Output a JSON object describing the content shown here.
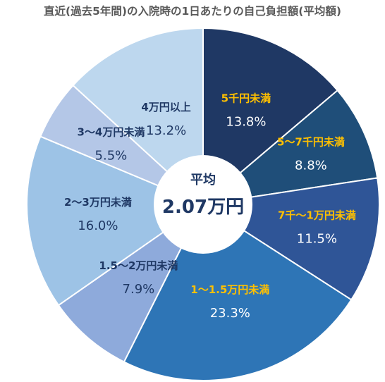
{
  "chart_data": {
    "type": "pie",
    "title": "直近(過去5年間)の入院時の1日あたりの自己負担額(平均額)",
    "center": {
      "label": "平均",
      "value": "2.07万円"
    },
    "slices": [
      {
        "label": "5千円未満",
        "value": 13.8,
        "display": "13.8%",
        "color": "#1f3864",
        "label_color": "#ffc000",
        "pct_color": "#ffffff"
      },
      {
        "label": "5〜7千円未満",
        "value": 8.8,
        "display": "8.8%",
        "color": "#1f4e79",
        "label_color": "#ffc000",
        "pct_color": "#ffffff"
      },
      {
        "label": "7千〜1万円未満",
        "value": 11.5,
        "display": "11.5%",
        "color": "#2f5597",
        "label_color": "#ffc000",
        "pct_color": "#ffffff"
      },
      {
        "label": "1〜1.5万円未満",
        "value": 23.3,
        "display": "23.3%",
        "color": "#2e75b6",
        "label_color": "#ffc000",
        "pct_color": "#ffffff"
      },
      {
        "label": "1.5〜2万円未満",
        "value": 7.9,
        "display": "7.9%",
        "color": "#8eaadb",
        "label_color": "#1f3864",
        "pct_color": "#1f3864"
      },
      {
        "label": "2〜3万円未満",
        "value": 16.0,
        "display": "16.0%",
        "color": "#9dc3e6",
        "label_color": "#1f3864",
        "pct_color": "#1f3864"
      },
      {
        "label": "3〜4万円未満",
        "value": 5.5,
        "display": "5.5%",
        "color": "#b4c7e7",
        "label_color": "#1f3864",
        "pct_color": "#1f3864"
      },
      {
        "label": "4万円以上",
        "value": 13.2,
        "display": "13.2%",
        "color": "#bdd7ee",
        "label_color": "#1f3864",
        "pct_color": "#1f3864"
      }
    ]
  }
}
